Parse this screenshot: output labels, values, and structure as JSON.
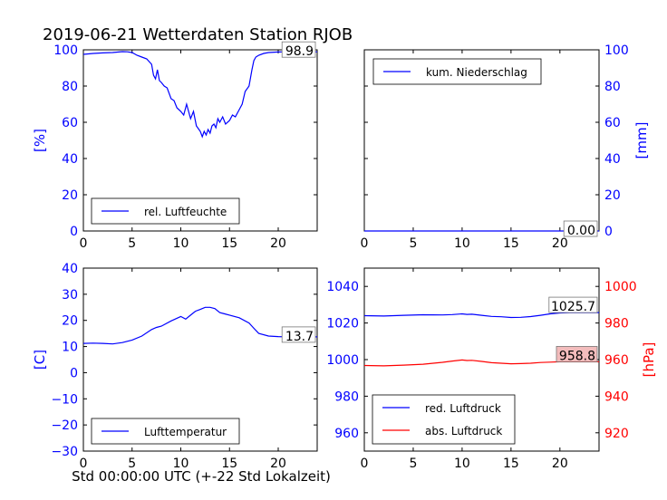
{
  "title": "2019-06-21 Wetterdaten Station RJOB",
  "xlabel": "Std 00:00:00 UTC (+-22 Std Lokalzeit)",
  "colors": {
    "blue": "#0000ff",
    "red": "#ff0000",
    "black": "#000000"
  },
  "chart_data": [
    {
      "id": "humidity",
      "type": "line",
      "xlim": [
        0,
        24
      ],
      "ylim": [
        0,
        100
      ],
      "xticks": [
        "0",
        "5",
        "10",
        "15",
        "20"
      ],
      "yticks": [
        "0",
        "20",
        "40",
        "60",
        "80",
        "100"
      ],
      "ylabel": "[%]",
      "legend": {
        "label": "rel. Luftfeuchte",
        "position": "lower-left"
      },
      "value_label": "98.9",
      "series": [
        {
          "name": "rel. Luftfeuchte",
          "color": "#0000ff",
          "x": [
            0,
            1,
            2,
            3,
            4,
            4.5,
            5,
            5.5,
            6,
            6.5,
            7,
            7.2,
            7.4,
            7.6,
            7.8,
            8,
            8.3,
            8.6,
            9,
            9.3,
            9.6,
            10,
            10.3,
            10.6,
            11,
            11.3,
            11.6,
            12,
            12.2,
            12.4,
            12.6,
            12.8,
            13,
            13.2,
            13.4,
            13.6,
            13.8,
            14,
            14.3,
            14.6,
            15,
            15.3,
            15.6,
            16,
            16.3,
            16.6,
            17,
            17.3,
            17.5,
            17.7,
            18,
            18.5,
            19,
            20,
            21,
            22,
            23,
            24
          ],
          "y": [
            97.5,
            98,
            98.3,
            98.5,
            99,
            98.9,
            98.5,
            97,
            96,
            95,
            92,
            86,
            84,
            89,
            83,
            82,
            80,
            79,
            73,
            72,
            68,
            66,
            64,
            70,
            62,
            66,
            58,
            55,
            52,
            55,
            53,
            56,
            54,
            58,
            59,
            57,
            62,
            60,
            63,
            59,
            61,
            64,
            63,
            67,
            70,
            77,
            80,
            89,
            94,
            96,
            97,
            98,
            98.5,
            98.8,
            98.9,
            98.9,
            98.9,
            98.9
          ]
        }
      ]
    },
    {
      "id": "precipitation",
      "type": "line",
      "xlim": [
        0,
        24
      ],
      "ylim": [
        0,
        100
      ],
      "xticks": [
        "0",
        "5",
        "10",
        "15",
        "20"
      ],
      "yticks": [
        "0",
        "20",
        "40",
        "60",
        "80",
        "100"
      ],
      "ylabel": "[mm]",
      "legend": {
        "label": "kum. Niederschlag",
        "position": "upper-left"
      },
      "value_label": "0.00",
      "series": [
        {
          "name": "kum. Niederschlag",
          "color": "#0000ff",
          "x": [
            0,
            24
          ],
          "y": [
            0,
            0
          ]
        }
      ]
    },
    {
      "id": "temperature",
      "type": "line",
      "xlim": [
        0,
        24
      ],
      "ylim": [
        -30,
        40
      ],
      "xticks": [
        "0",
        "5",
        "10",
        "15",
        "20"
      ],
      "yticks": [
        "−30",
        "−20",
        "−10",
        "0",
        "10",
        "20",
        "30",
        "40"
      ],
      "ylabel": "[C]",
      "legend": {
        "label": "Lufttemperatur",
        "position": "lower-left"
      },
      "value_label": "13.7",
      "series": [
        {
          "name": "Lufttemperatur",
          "color": "#0000ff",
          "x": [
            0,
            1,
            2,
            3,
            4,
            5,
            6,
            7,
            7.5,
            8,
            9,
            10,
            10.5,
            11,
            11.5,
            12,
            12.5,
            13,
            13.5,
            14,
            14.5,
            15,
            16,
            17,
            17.5,
            18,
            19,
            20,
            21,
            22,
            23,
            24
          ],
          "y": [
            11.2,
            11.3,
            11.2,
            11,
            11.5,
            12.5,
            14,
            16.5,
            17.3,
            17.8,
            19.8,
            21.5,
            20.5,
            22,
            23.5,
            24.2,
            25,
            25,
            24.5,
            23,
            22.5,
            22,
            21,
            19,
            17,
            15,
            14,
            13.8,
            13.7,
            13.7,
            13.7,
            13.7
          ]
        }
      ]
    },
    {
      "id": "pressure",
      "type": "line",
      "xlim": [
        0,
        24
      ],
      "ylim": [
        950,
        1050
      ],
      "ylim_right": [
        910,
        1010
      ],
      "xticks": [
        "0",
        "5",
        "10",
        "15",
        "20"
      ],
      "yticks": [
        "960",
        "980",
        "1000",
        "1020",
        "1040"
      ],
      "yticks_right": [
        "920",
        "940",
        "960",
        "980",
        "1000"
      ],
      "ylabel_right": "[hPa]",
      "legend": {
        "position": "lower-left"
      },
      "value_labels": [
        "1025.7",
        "958.8"
      ],
      "series": [
        {
          "name": "red. Luftdruck",
          "color": "#0000ff",
          "axis": "left",
          "x": [
            0,
            2,
            4,
            6,
            8,
            9,
            10,
            10.5,
            11,
            12,
            13,
            14,
            15,
            16,
            17,
            18,
            19,
            20,
            21,
            22,
            23,
            24
          ],
          "y": [
            1024,
            1023.8,
            1024.2,
            1024.5,
            1024.4,
            1024.6,
            1025,
            1024.7,
            1024.8,
            1024.2,
            1023.6,
            1023.4,
            1023,
            1023.1,
            1023.5,
            1024.2,
            1025,
            1025.5,
            1025.7,
            1025.7,
            1025.7,
            1025.7
          ]
        },
        {
          "name": "abs. Luftdruck",
          "color": "#ff0000",
          "axis": "right",
          "x": [
            0,
            2,
            4,
            6,
            8,
            9,
            10,
            10.5,
            11,
            12,
            13,
            14,
            15,
            16,
            17,
            18,
            19,
            20,
            21,
            22,
            23,
            24
          ],
          "y": [
            956.8,
            956.6,
            957,
            957.5,
            958.5,
            959.2,
            959.8,
            959.5,
            959.6,
            959,
            958.3,
            958,
            957.7,
            957.8,
            958,
            958.4,
            958.6,
            958.8,
            958.8,
            958.8,
            958.8,
            958.8
          ]
        }
      ]
    }
  ]
}
